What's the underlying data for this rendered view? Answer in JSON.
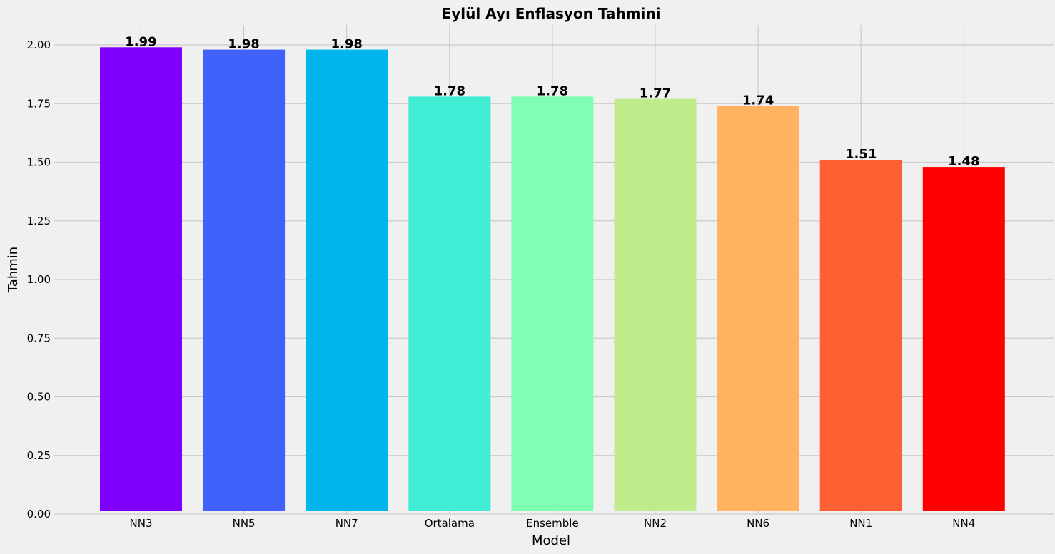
{
  "chart_data": {
    "type": "bar",
    "title": "Eylül Ayı Enflasyon Tahmini",
    "xlabel": "Model",
    "ylabel": "Tahmin",
    "categories": [
      "NN3",
      "NN5",
      "NN7",
      "Ortalama",
      "Ensemble",
      "NN2",
      "NN6",
      "NN1",
      "NN4"
    ],
    "values": [
      1.99,
      1.98,
      1.98,
      1.78,
      1.78,
      1.77,
      1.74,
      1.51,
      1.48
    ],
    "data_labels": [
      "1.99",
      "1.98",
      "1.98",
      "1.78",
      "1.78",
      "1.77",
      "1.74",
      "1.51",
      "1.48"
    ],
    "colors": [
      "#8000ff",
      "#4062fa",
      "#00b5eb",
      "#40ecd4",
      "#80ffb4",
      "#c0eb8d",
      "#ffb360",
      "#ff6033",
      "#ff0000"
    ],
    "ylim": [
      0,
      2.0
    ],
    "yticks": [
      "0.00",
      "0.25",
      "0.50",
      "0.75",
      "1.00",
      "1.25",
      "1.50",
      "1.75",
      "2.00"
    ],
    "grid": true,
    "background": "#f0f0f0"
  }
}
